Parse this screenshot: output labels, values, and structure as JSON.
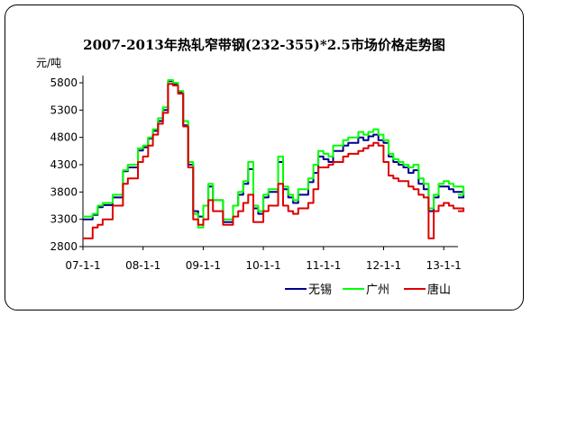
{
  "chart_data": {
    "type": "line",
    "title": "2007-2013年热轧窄带钢(232-355)*2.5市场价格走势图",
    "ylabel": "元/吨",
    "xlabel": "",
    "ylim": [
      2800,
      5900
    ],
    "yticks": [
      2800,
      3300,
      3800,
      4300,
      4800,
      5300,
      5800
    ],
    "xticks": [
      "07-1-1",
      "08-1-1",
      "09-1-1",
      "10-1-1",
      "11-1-1",
      "12-1-1",
      "13-1-1"
    ],
    "x": [
      "2007-01-01",
      "2007-03-01",
      "2007-04-01",
      "2007-05-01",
      "2007-07-01",
      "2007-09-01",
      "2007-10-01",
      "2007-12-01",
      "2008-01-01",
      "2008-02-01",
      "2008-03-01",
      "2008-04-01",
      "2008-05-01",
      "2008-06-01",
      "2008-07-01",
      "2008-08-01",
      "2008-09-01",
      "2008-10-01",
      "2008-11-01",
      "2008-12-01",
      "2009-01-01",
      "2009-02-01",
      "2009-03-01",
      "2009-05-01",
      "2009-07-01",
      "2009-08-01",
      "2009-09-01",
      "2009-10-01",
      "2009-11-01",
      "2009-12-01",
      "2010-01-01",
      "2010-02-01",
      "2010-04-01",
      "2010-05-01",
      "2010-06-01",
      "2010-07-01",
      "2010-08-01",
      "2010-10-01",
      "2010-11-01",
      "2010-12-01",
      "2011-01-01",
      "2011-02-01",
      "2011-03-01",
      "2011-05-01",
      "2011-06-01",
      "2011-08-01",
      "2011-09-01",
      "2011-10-01",
      "2011-11-01",
      "2011-12-01",
      "2012-01-01",
      "2012-02-01",
      "2012-03-01",
      "2012-04-01",
      "2012-05-01",
      "2012-06-01",
      "2012-07-01",
      "2012-08-01",
      "2012-09-01",
      "2012-10-01",
      "2012-11-01",
      "2012-12-01",
      "2013-01-01",
      "2013-02-01",
      "2013-03-01",
      "2013-04-01",
      "2013-05-01"
    ],
    "series": [
      {
        "name": "无锡",
        "color": "#00008b",
        "values": [
          3300,
          3380,
          3520,
          3560,
          3700,
          4180,
          4250,
          4560,
          4620,
          4780,
          4920,
          5100,
          5300,
          5830,
          5780,
          5620,
          5020,
          4300,
          3450,
          3350,
          3550,
          3900,
          3650,
          3250,
          3550,
          3750,
          3950,
          4220,
          3500,
          3400,
          3700,
          3800,
          4350,
          3850,
          3700,
          3600,
          3750,
          3980,
          4150,
          4450,
          4400,
          4350,
          4550,
          4650,
          4700,
          4800,
          4750,
          4820,
          4850,
          4750,
          4700,
          4450,
          4350,
          4300,
          4250,
          4150,
          4200,
          3950,
          3850,
          3450,
          3700,
          3900,
          3900,
          3850,
          3800,
          3800,
          3700
        ]
      },
      {
        "name": "广州",
        "color": "#00ff00",
        "values": [
          3350,
          3400,
          3550,
          3600,
          3750,
          4200,
          4300,
          4600,
          4650,
          4800,
          4950,
          5150,
          5350,
          5850,
          5800,
          5650,
          5100,
          4350,
          3400,
          3150,
          3550,
          3950,
          3650,
          3300,
          3550,
          3800,
          4000,
          4350,
          3550,
          3450,
          3750,
          3850,
          4450,
          3900,
          3750,
          3650,
          3850,
          4050,
          4300,
          4550,
          4500,
          4450,
          4650,
          4750,
          4800,
          4900,
          4850,
          4900,
          4950,
          4850,
          4750,
          4500,
          4400,
          4350,
          4300,
          4250,
          4300,
          4050,
          3950,
          3500,
          3750,
          3950,
          4000,
          3950,
          3900,
          3900,
          3750
        ]
      },
      {
        "name": "唐山",
        "color": "#dd0000",
        "values": [
          2950,
          3150,
          3200,
          3300,
          3550,
          3950,
          4050,
          4350,
          4450,
          4650,
          4850,
          5050,
          5250,
          5780,
          5750,
          5600,
          5000,
          4250,
          3300,
          3200,
          3300,
          3650,
          3450,
          3200,
          3350,
          3450,
          3600,
          3750,
          3250,
          3250,
          3450,
          3550,
          3950,
          3550,
          3450,
          3400,
          3500,
          3600,
          3850,
          4250,
          4250,
          4300,
          4350,
          4450,
          4500,
          4550,
          4600,
          4650,
          4700,
          4650,
          4350,
          4100,
          4050,
          4000,
          4000,
          3900,
          3850,
          3750,
          3700,
          2950,
          3450,
          3550,
          3600,
          3550,
          3500,
          3500,
          3450
        ]
      }
    ],
    "legend_position": "bottom-right",
    "grid": false
  }
}
